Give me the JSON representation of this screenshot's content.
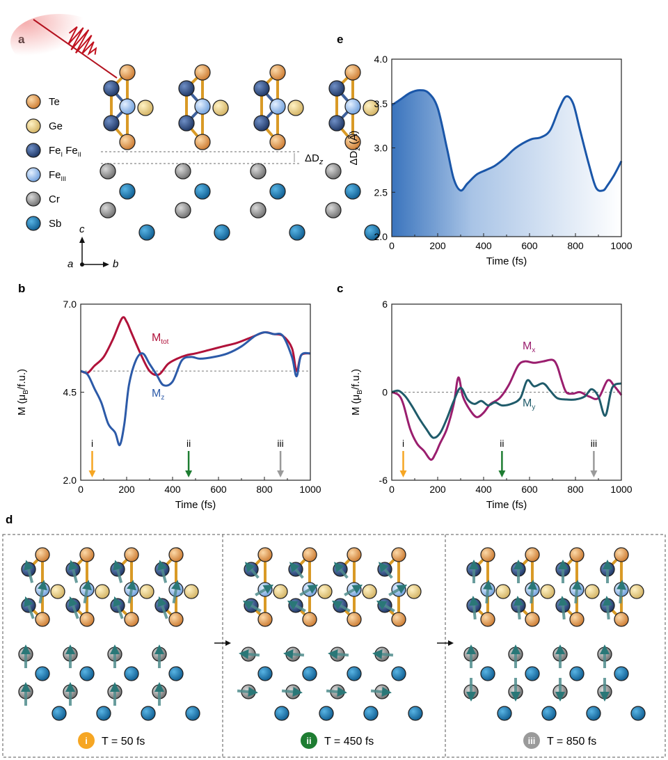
{
  "panels": {
    "a": "a",
    "b": "b",
    "c": "c",
    "d": "d",
    "e": "e"
  },
  "legend": [
    {
      "label": "Te",
      "color": "#e39a4f"
    },
    {
      "label": "Ge",
      "color": "#ead186"
    },
    {
      "label": "Fe",
      "sub1": "I",
      "sub2": "II",
      "color": "#2c4a82"
    },
    {
      "label": "Fe",
      "sub1": "III",
      "color": "#9ec3f2"
    },
    {
      "label": "Cr",
      "color": "#9b9b9b"
    },
    {
      "label": "Sb",
      "color": "#1b78b4"
    }
  ],
  "axes_labels": {
    "c": "c",
    "a": "a",
    "b": "b"
  },
  "dz_label": "ΔD",
  "dz_sub": "z",
  "snapshots": [
    {
      "roman": "i",
      "label": "T = 50 fs",
      "color": "#f6a623"
    },
    {
      "roman": "ii",
      "label": "T = 450 fs",
      "color": "#1e7d32"
    },
    {
      "roman": "iii",
      "label": "T = 850 fs",
      "color": "#9a9a9a"
    }
  ],
  "chart_data": [
    {
      "id": "b",
      "type": "line",
      "xlabel": "Time (fs)",
      "ylabel": "M (μB/f.u.)",
      "xlim": [
        0,
        1000
      ],
      "ylim": [
        2.0,
        7.0
      ],
      "xticks": [
        "0",
        "200",
        "400",
        "600",
        "800",
        "1000"
      ],
      "yticks": [
        "2.0",
        "4.5",
        "7.0"
      ],
      "reference_line": 5.1,
      "series": [
        {
          "name": "Mtot",
          "label": "M",
          "sub": "tot",
          "color": "#b0123a",
          "x": [
            0,
            30,
            60,
            100,
            140,
            180,
            200,
            220,
            260,
            300,
            340,
            380,
            420,
            460,
            500,
            560,
            620,
            680,
            740,
            800,
            840,
            880,
            920,
            940,
            960,
            1000
          ],
          "y": [
            5.1,
            5.05,
            5.25,
            5.5,
            6.0,
            6.6,
            6.5,
            6.2,
            5.6,
            5.1,
            5.0,
            5.3,
            5.45,
            5.55,
            5.6,
            5.7,
            5.8,
            5.9,
            6.05,
            6.2,
            6.15,
            6.1,
            5.75,
            5.1,
            5.55,
            5.6
          ]
        },
        {
          "name": "Mz",
          "label": "M",
          "sub": "z",
          "color": "#2c5aa8",
          "x": [
            0,
            30,
            60,
            90,
            120,
            150,
            170,
            190,
            210,
            240,
            270,
            300,
            330,
            360,
            400,
            440,
            480,
            520,
            580,
            640,
            700,
            760,
            800,
            840,
            880,
            920,
            940,
            960,
            1000
          ],
          "y": [
            5.1,
            5.0,
            4.6,
            4.2,
            3.6,
            3.35,
            3.0,
            3.6,
            4.7,
            5.4,
            5.6,
            5.3,
            5.0,
            4.7,
            4.8,
            5.4,
            5.5,
            5.45,
            5.5,
            5.6,
            5.8,
            6.1,
            6.2,
            6.15,
            6.1,
            5.5,
            4.95,
            5.55,
            5.6
          ]
        }
      ],
      "markers": [
        {
          "id": "i",
          "x": 50,
          "color": "#f6a623"
        },
        {
          "id": "ii",
          "x": 470,
          "color": "#1e7d32"
        },
        {
          "id": "iii",
          "x": 870,
          "color": "#9a9a9a"
        }
      ]
    },
    {
      "id": "c",
      "type": "line",
      "xlabel": "Time (fs)",
      "ylabel": "M (μB/f.u.)",
      "xlim": [
        0,
        1000
      ],
      "ylim": [
        -6,
        6
      ],
      "xticks": [
        "0",
        "200",
        "400",
        "600",
        "800",
        "1000"
      ],
      "yticks": [
        "-6",
        "0",
        "6"
      ],
      "reference_line": 0,
      "series": [
        {
          "name": "Mx",
          "label": "M",
          "sub": "x",
          "color": "#9a1e6e",
          "x": [
            0,
            30,
            50,
            80,
            110,
            140,
            170,
            190,
            210,
            240,
            270,
            290,
            310,
            340,
            370,
            400,
            430,
            470,
            510,
            550,
            580,
            620,
            660,
            700,
            720,
            740,
            760,
            790,
            820,
            860,
            900,
            940,
            970,
            1000
          ],
          "y": [
            0,
            -0.2,
            -0.8,
            -2.5,
            -3.5,
            -4.0,
            -4.6,
            -4.2,
            -3.5,
            -2.5,
            -0.8,
            1.0,
            -0.3,
            -1.2,
            -1.7,
            -1.4,
            -0.8,
            -0.4,
            0.5,
            1.8,
            2.1,
            2.0,
            2.1,
            2.2,
            1.8,
            0.8,
            0.0,
            -0.1,
            0.0,
            -0.3,
            -0.4,
            0.8,
            0.4,
            -0.2
          ]
        },
        {
          "name": "My",
          "label": "M",
          "sub": "y",
          "color": "#1f5b6a",
          "x": [
            0,
            30,
            60,
            90,
            120,
            150,
            180,
            210,
            240,
            270,
            300,
            330,
            360,
            390,
            420,
            450,
            480,
            520,
            560,
            590,
            620,
            660,
            690,
            720,
            760,
            800,
            840,
            870,
            900,
            930,
            960,
            1000
          ],
          "y": [
            0,
            0.1,
            -0.3,
            -1.0,
            -1.8,
            -2.5,
            -3.1,
            -2.8,
            -1.8,
            -0.6,
            0.3,
            -0.5,
            -0.8,
            -0.6,
            -0.9,
            -0.7,
            -0.9,
            -0.8,
            -0.4,
            0.8,
            0.4,
            0.6,
            0.1,
            -0.4,
            -0.5,
            -0.5,
            -0.3,
            0.2,
            -0.3,
            -1.6,
            0.3,
            0.6
          ]
        }
      ],
      "markers": [
        {
          "id": "i",
          "x": 50,
          "color": "#f6a623"
        },
        {
          "id": "ii",
          "x": 480,
          "color": "#1e7d32"
        },
        {
          "id": "iii",
          "x": 880,
          "color": "#9a9a9a"
        }
      ]
    },
    {
      "id": "e",
      "type": "area",
      "xlabel": "Time (fs)",
      "ylabel": "ΔDz (Å)",
      "xlim": [
        0,
        1000
      ],
      "ylim": [
        2.0,
        4.0
      ],
      "xticks": [
        "0",
        "200",
        "400",
        "600",
        "800",
        "1000"
      ],
      "yticks": [
        "2.0",
        "2.5",
        "3.0",
        "3.5",
        "4.0"
      ],
      "series": [
        {
          "name": "ΔDz",
          "color": "#1a56a8",
          "x": [
            0,
            40,
            80,
            120,
            160,
            200,
            240,
            270,
            300,
            330,
            370,
            410,
            450,
            490,
            530,
            570,
            610,
            650,
            690,
            730,
            760,
            790,
            820,
            860,
            890,
            920,
            940,
            970,
            1000
          ],
          "y": [
            3.48,
            3.55,
            3.62,
            3.65,
            3.62,
            3.45,
            3.0,
            2.65,
            2.52,
            2.6,
            2.7,
            2.75,
            2.8,
            2.88,
            2.98,
            3.05,
            3.1,
            3.12,
            3.2,
            3.45,
            3.58,
            3.5,
            3.2,
            2.8,
            2.55,
            2.52,
            2.58,
            2.7,
            2.85
          ]
        }
      ]
    }
  ]
}
